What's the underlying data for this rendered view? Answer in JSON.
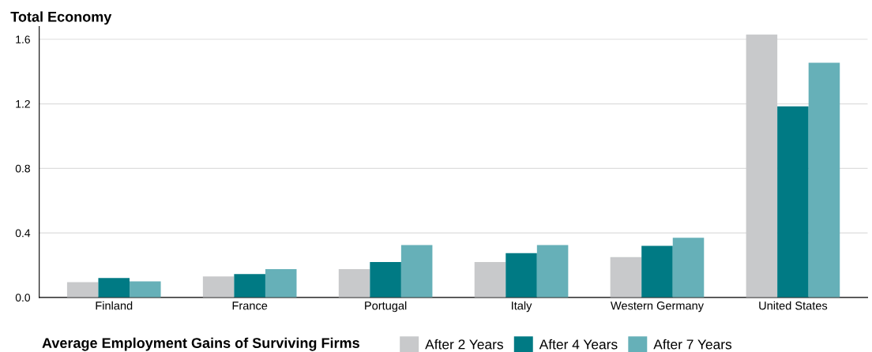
{
  "chart_data": {
    "type": "bar",
    "title": "Total Economy",
    "legend_title": "Average Employment Gains of Surviving Firms",
    "categories": [
      "Finland",
      "France",
      "Portugal",
      "Italy",
      "Western Germany",
      "United States"
    ],
    "series": [
      {
        "name": "After 2 Years",
        "color": "#c8c9cb",
        "values": [
          0.095,
          0.13,
          0.175,
          0.22,
          0.25,
          1.63
        ]
      },
      {
        "name": "After 4 Years",
        "color": "#007a84",
        "values": [
          0.12,
          0.145,
          0.22,
          0.275,
          0.32,
          1.185
        ]
      },
      {
        "name": "After 7 Years",
        "color": "#66b0b8",
        "values": [
          0.1,
          0.175,
          0.325,
          0.325,
          0.37,
          1.455
        ]
      }
    ],
    "ylim": [
      0,
      1.68
    ],
    "yticks": [
      {
        "value": 0,
        "label": "0.0"
      },
      0.4,
      0.8,
      1.2,
      1.6
    ],
    "grid": "y",
    "legend": "bottom"
  }
}
